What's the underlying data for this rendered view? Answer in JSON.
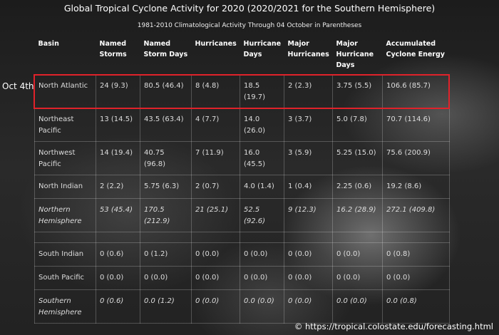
{
  "title": "Global Tropical Cyclone Activity for 2020 (2020/2021 for the Southern Hemisphere)",
  "subtitle": "1981-2010 Climatological Activity Through 04 October in Parentheses",
  "row_label": "Oct 4th",
  "table": {
    "headers": [
      "Basin",
      "Named Storms",
      "Named Storm Days",
      "Hurricanes",
      "Hurricane Days",
      "Major Hurricanes",
      "Major Hurricane Days",
      "Accumulated Cyclone Energy"
    ],
    "groups": [
      {
        "rows": [
          [
            "North Atlantic",
            "24 (9.3)",
            "80.5 (46.4)",
            "8 (4.8)",
            "18.5 (19.7)",
            "2 (2.3)",
            "3.75 (5.5)",
            "106.6 (85.7)"
          ],
          [
            "Northeast Pacific",
            "13 (14.5)",
            "43.5 (63.4)",
            "4 (7.7)",
            "14.0 (26.0)",
            "3 (3.7)",
            "5.0 (7.8)",
            "70.7 (114.6)"
          ],
          [
            "Northwest Pacific",
            "14 (19.4)",
            "40.75 (96.8)",
            "7 (11.9)",
            "16.0 (45.5)",
            "3 (5.9)",
            "5.25 (15.0)",
            "75.6 (200.9)"
          ],
          [
            "North Indian",
            "2 (2.2)",
            "5.75 (6.3)",
            "2 (0.7)",
            "4.0 (1.4)",
            "1 (0.4)",
            "2.25 (0.6)",
            "19.2 (8.6)"
          ],
          [
            "Northern Hemisphere",
            "53 (45.4)",
            "170.5 (212.9)",
            "21 (25.1)",
            "52.5 (92.6)",
            "9 (12.3)",
            "16.2 (28.9)",
            "272.1 (409.8)"
          ]
        ]
      },
      {
        "rows": [
          [
            "South Indian",
            "0 (0.6)",
            "0 (1.2)",
            "0 (0.0)",
            "0 (0.0)",
            "0 (0.0)",
            "0 (0.0)",
            "0 (0.8)"
          ],
          [
            "South Pacific",
            "0 (0.0)",
            "0 (0.0)",
            "0 (0.0)",
            "0 (0.0)",
            "0 (0.0)",
            "0 (0.0)",
            "0 (0.0)"
          ],
          [
            "Southern Hemisphere",
            "0 (0.6)",
            "0.0 (1.2)",
            "0 (0.0)",
            "0.0 (0.0)",
            "0 (0.0)",
            "0.0 (0.0)",
            "0.0 (0.8)"
          ]
        ]
      }
    ]
  },
  "footer": "© https://tropical.colostate.edu/forecasting.html"
}
